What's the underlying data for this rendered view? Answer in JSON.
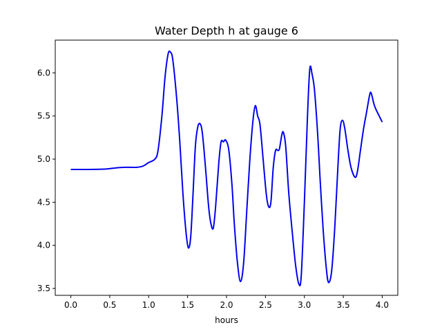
{
  "chart_data": {
    "type": "line",
    "title": "Water Depth h at gauge 6",
    "xlabel": "hours",
    "ylabel": "",
    "xlim": [
      -0.2,
      4.2
    ],
    "ylim": [
      3.42,
      6.38
    ],
    "xticks": [
      0.0,
      0.5,
      1.0,
      1.5,
      2.0,
      2.5,
      3.0,
      3.5,
      4.0
    ],
    "xtick_labels": [
      "0.0",
      "0.5",
      "1.0",
      "1.5",
      "2.0",
      "2.5",
      "3.0",
      "3.5",
      "4.0"
    ],
    "yticks": [
      3.5,
      4.0,
      4.5,
      5.0,
      5.5,
      6.0
    ],
    "ytick_labels": [
      "3.5",
      "4.0",
      "4.5",
      "5.0",
      "5.5",
      "6.0"
    ],
    "grid": false,
    "series": [
      {
        "color": "#0000ee",
        "points": [
          [
            0.0,
            4.88
          ],
          [
            0.2,
            4.88
          ],
          [
            0.45,
            4.885
          ],
          [
            0.6,
            4.9
          ],
          [
            0.7,
            4.905
          ],
          [
            0.85,
            4.905
          ],
          [
            0.93,
            4.92
          ],
          [
            1.0,
            4.96
          ],
          [
            1.08,
            5.0
          ],
          [
            1.12,
            5.1
          ],
          [
            1.17,
            5.5
          ],
          [
            1.21,
            5.95
          ],
          [
            1.25,
            6.22
          ],
          [
            1.28,
            6.24
          ],
          [
            1.31,
            6.15
          ],
          [
            1.36,
            5.7
          ],
          [
            1.4,
            5.2
          ],
          [
            1.44,
            4.6
          ],
          [
            1.48,
            4.15
          ],
          [
            1.51,
            3.97
          ],
          [
            1.54,
            4.1
          ],
          [
            1.57,
            4.6
          ],
          [
            1.6,
            5.15
          ],
          [
            1.63,
            5.37
          ],
          [
            1.66,
            5.41
          ],
          [
            1.69,
            5.3
          ],
          [
            1.73,
            4.9
          ],
          [
            1.77,
            4.45
          ],
          [
            1.8,
            4.25
          ],
          [
            1.83,
            4.2
          ],
          [
            1.86,
            4.45
          ],
          [
            1.9,
            4.95
          ],
          [
            1.93,
            5.2
          ],
          [
            1.96,
            5.2
          ],
          [
            1.99,
            5.22
          ],
          [
            2.03,
            5.1
          ],
          [
            2.07,
            4.7
          ],
          [
            2.1,
            4.25
          ],
          [
            2.14,
            3.8
          ],
          [
            2.18,
            3.58
          ],
          [
            2.22,
            3.8
          ],
          [
            2.26,
            4.4
          ],
          [
            2.3,
            5.0
          ],
          [
            2.34,
            5.45
          ],
          [
            2.37,
            5.62
          ],
          [
            2.4,
            5.5
          ],
          [
            2.43,
            5.4
          ],
          [
            2.47,
            5.0
          ],
          [
            2.51,
            4.6
          ],
          [
            2.54,
            4.45
          ],
          [
            2.57,
            4.5
          ],
          [
            2.6,
            4.9
          ],
          [
            2.63,
            5.1
          ],
          [
            2.66,
            5.1
          ],
          [
            2.68,
            5.12
          ],
          [
            2.71,
            5.28
          ],
          [
            2.73,
            5.31
          ],
          [
            2.76,
            5.15
          ],
          [
            2.8,
            4.6
          ],
          [
            2.85,
            4.1
          ],
          [
            2.89,
            3.75
          ],
          [
            2.93,
            3.55
          ],
          [
            2.96,
            3.65
          ],
          [
            3.0,
            4.5
          ],
          [
            3.04,
            5.5
          ],
          [
            3.07,
            6.05
          ],
          [
            3.1,
            5.98
          ],
          [
            3.13,
            5.8
          ],
          [
            3.17,
            5.3
          ],
          [
            3.2,
            4.8
          ],
          [
            3.24,
            4.2
          ],
          [
            3.28,
            3.75
          ],
          [
            3.31,
            3.57
          ],
          [
            3.35,
            3.7
          ],
          [
            3.39,
            4.2
          ],
          [
            3.43,
            4.9
          ],
          [
            3.46,
            5.35
          ],
          [
            3.49,
            5.45
          ],
          [
            3.52,
            5.35
          ],
          [
            3.56,
            5.1
          ],
          [
            3.6,
            4.9
          ],
          [
            3.65,
            4.79
          ],
          [
            3.68,
            4.85
          ],
          [
            3.72,
            5.1
          ],
          [
            3.76,
            5.35
          ],
          [
            3.8,
            5.55
          ],
          [
            3.84,
            5.75
          ],
          [
            3.86,
            5.76
          ],
          [
            3.9,
            5.62
          ],
          [
            3.95,
            5.52
          ],
          [
            4.0,
            5.43
          ]
        ]
      }
    ]
  }
}
